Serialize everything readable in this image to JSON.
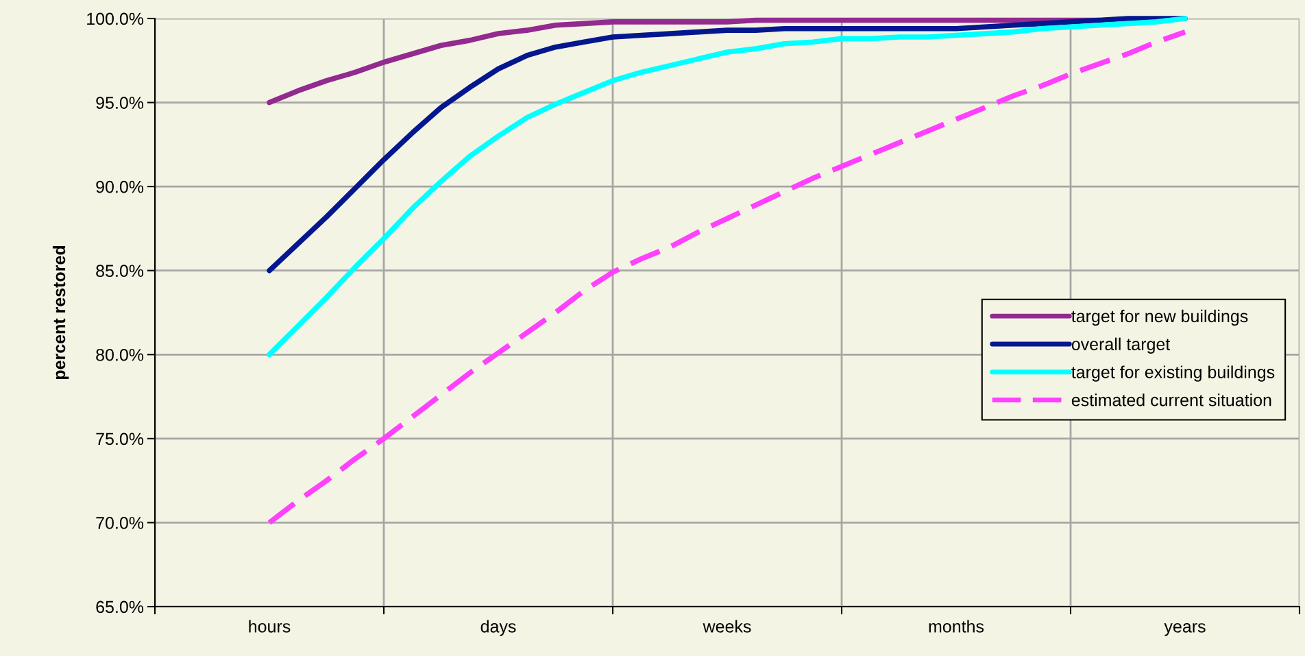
{
  "chart_data": {
    "type": "line",
    "ylabel": "percent restored",
    "categories": [
      "hours",
      null,
      null,
      null,
      null,
      null,
      null,
      null,
      "days",
      null,
      null,
      null,
      null,
      null,
      null,
      null,
      "weeks",
      null,
      null,
      null,
      null,
      null,
      null,
      null,
      "months",
      null,
      null,
      null,
      null,
      null,
      null,
      null,
      "years"
    ],
    "series": [
      {
        "name": "target for new buildings",
        "color": "#922a8f",
        "line_style": "solid",
        "values": [
          95.0,
          95.7,
          96.3,
          96.8,
          97.4,
          97.9,
          98.4,
          98.7,
          99.1,
          99.3,
          99.6,
          99.7,
          99.8,
          99.8,
          99.8,
          99.8,
          99.8,
          99.9,
          99.9,
          99.9,
          99.9,
          99.9,
          99.9,
          99.9,
          99.9,
          99.9,
          99.9,
          99.9,
          99.9,
          99.9,
          null,
          null,
          null
        ]
      },
      {
        "name": "overall target",
        "color": "#04178f",
        "line_style": "solid",
        "values": [
          85.0,
          86.6,
          88.2,
          89.9,
          91.6,
          93.2,
          94.7,
          95.9,
          97.0,
          97.8,
          98.3,
          98.6,
          98.9,
          99.0,
          99.1,
          99.2,
          99.3,
          99.3,
          99.4,
          99.4,
          99.4,
          99.4,
          99.4,
          99.4,
          99.4,
          99.5,
          99.6,
          99.7,
          99.8,
          99.9,
          100.0,
          100.0,
          100.0
        ]
      },
      {
        "name": "target for existing buildings",
        "color": "#00ffff",
        "line_style": "solid",
        "values": [
          80.0,
          81.7,
          83.4,
          85.2,
          86.9,
          88.7,
          90.3,
          91.8,
          93.0,
          94.1,
          94.9,
          95.6,
          96.3,
          96.8,
          97.2,
          97.6,
          98.0,
          98.2,
          98.5,
          98.6,
          98.8,
          98.8,
          98.9,
          98.9,
          99.0,
          99.1,
          99.2,
          99.4,
          99.5,
          99.6,
          99.7,
          99.8,
          100.0
        ]
      },
      {
        "name": "estimated current situation",
        "color": "#ff40ff",
        "line_style": "dashed",
        "values": [
          70.0,
          71.3,
          72.5,
          73.8,
          75.0,
          76.3,
          77.6,
          78.9,
          80.1,
          81.3,
          82.5,
          83.8,
          84.9,
          85.7,
          86.4,
          87.3,
          88.1,
          88.9,
          89.7,
          90.5,
          91.2,
          91.9,
          92.6,
          93.3,
          94.0,
          94.7,
          95.4,
          96.0,
          96.7,
          97.3,
          97.9,
          98.6,
          99.2
        ]
      }
    ],
    "ylim": [
      65,
      100
    ],
    "yticks": [
      {
        "value": 65,
        "label": "65.0%"
      },
      {
        "value": 70,
        "label": "70.0%"
      },
      {
        "value": 75,
        "label": "75.0%"
      },
      {
        "value": 80,
        "label": "80.0%"
      },
      {
        "value": 85,
        "label": "85.0%"
      },
      {
        "value": 90,
        "label": "90.0%"
      },
      {
        "value": 95,
        "label": "95.0%"
      },
      {
        "value": 100,
        "label": "100.0%"
      }
    ],
    "grid": true,
    "legend": "center right",
    "marker": "none"
  }
}
